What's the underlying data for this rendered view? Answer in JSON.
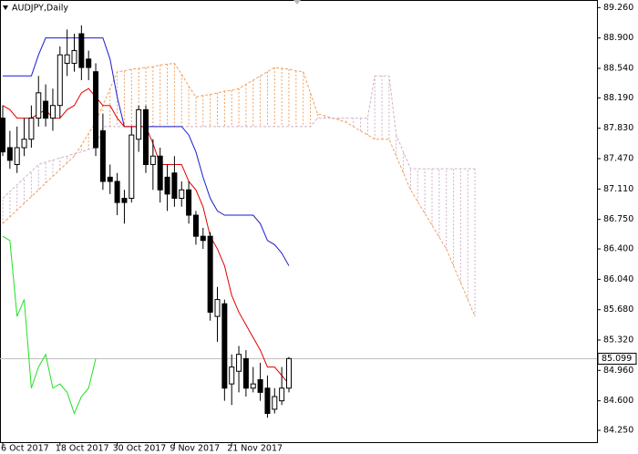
{
  "chart_data": {
    "type": "candlestick",
    "title": "AUDJPY,Daily",
    "categories": [
      "6 Oct 2017",
      null,
      null,
      null,
      null,
      null,
      null,
      null,
      "18 Oct 2017",
      null,
      null,
      null,
      null,
      null,
      null,
      null,
      "30 Oct 2017",
      null,
      null,
      null,
      null,
      null,
      null,
      null,
      "9 Nov 2017",
      null,
      null,
      null,
      null,
      null,
      null,
      null,
      "21 Nov 2017",
      null,
      null,
      null,
      null,
      null,
      null,
      null,
      null,
      null,
      null,
      null,
      null,
      null,
      null,
      null,
      null,
      null,
      null,
      null,
      null,
      null,
      null,
      null,
      null,
      null,
      null,
      null,
      null,
      null,
      null,
      null,
      null,
      null,
      null
    ],
    "open": [
      87.95,
      87.6,
      87.4,
      87.6,
      87.7,
      87.95,
      88.15,
      87.95,
      88.1,
      88.6,
      88.6,
      88.95,
      88.65,
      88.5,
      87.8,
      87.25,
      87.2,
      87.0,
      87.0,
      87.7,
      88.05,
      87.4,
      87.5,
      87.25,
      87.3,
      87.0,
      87.1,
      86.8,
      86.55,
      86.55,
      85.6,
      85.75,
      84.8,
      84.95,
      85.1,
      84.75,
      84.85,
      84.75,
      84.5,
      84.6,
      84.75,
      null,
      null,
      null,
      null,
      null,
      null,
      null,
      null,
      null,
      null,
      null,
      null,
      null,
      null,
      null,
      null,
      null,
      null,
      null,
      null,
      null,
      null,
      null,
      null,
      null,
      null
    ],
    "high": [
      88.1,
      87.8,
      87.85,
      87.95,
      88.1,
      88.45,
      88.35,
      88.3,
      88.8,
      89.0,
      88.95,
      89.05,
      88.75,
      88.6,
      88.0,
      87.4,
      87.3,
      87.1,
      87.85,
      88.1,
      88.1,
      87.7,
      87.6,
      87.4,
      87.5,
      87.2,
      87.2,
      86.85,
      86.65,
      86.6,
      85.95,
      85.8,
      85.15,
      85.25,
      85.2,
      85.0,
      85.05,
      84.9,
      84.75,
      85.0,
      85.12,
      null,
      null,
      null,
      null,
      null,
      null,
      null,
      null,
      null,
      null,
      null,
      null,
      null,
      null,
      null,
      null,
      null,
      null,
      null,
      null,
      null,
      null,
      null,
      null,
      null,
      null
    ],
    "low": [
      87.5,
      87.35,
      87.3,
      87.5,
      87.6,
      87.85,
      87.85,
      87.8,
      87.95,
      88.45,
      88.5,
      88.4,
      88.4,
      87.5,
      87.1,
      87.05,
      86.8,
      86.7,
      86.95,
      87.55,
      87.3,
      87.1,
      86.95,
      86.85,
      86.9,
      86.9,
      86.7,
      86.45,
      86.4,
      85.55,
      85.3,
      84.6,
      84.55,
      84.7,
      84.65,
      84.7,
      84.6,
      84.4,
      84.45,
      84.55,
      84.7,
      null,
      null,
      null,
      null,
      null,
      null,
      null,
      null,
      null,
      null,
      null,
      null,
      null,
      null,
      null,
      null,
      null,
      null,
      null,
      null,
      null,
      null,
      null,
      null,
      null,
      null
    ],
    "close": [
      87.55,
      87.45,
      87.6,
      87.7,
      87.95,
      88.25,
      87.95,
      88.1,
      88.7,
      88.7,
      88.75,
      88.55,
      88.55,
      87.6,
      87.2,
      87.2,
      86.95,
      86.95,
      87.75,
      88.05,
      87.4,
      87.5,
      87.1,
      87.05,
      87.0,
      87.1,
      86.8,
      86.55,
      86.5,
      85.65,
      85.8,
      84.75,
      85.0,
      85.15,
      84.75,
      84.8,
      84.7,
      84.45,
      84.65,
      84.75,
      85.1,
      null,
      null,
      null,
      null,
      null,
      null,
      null,
      null,
      null,
      null,
      null,
      null,
      null,
      null,
      null,
      null,
      null,
      null,
      null,
      null,
      null,
      null,
      null,
      null,
      null,
      null
    ],
    "tenkan": [
      88.1,
      88.05,
      87.95,
      87.95,
      87.95,
      88.0,
      88.05,
      87.95,
      87.95,
      88.05,
      88.1,
      88.25,
      88.3,
      88.2,
      88.1,
      88.1,
      87.95,
      87.85,
      87.85,
      87.85,
      87.85,
      87.65,
      87.4,
      87.4,
      87.4,
      87.4,
      87.2,
      87.1,
      86.9,
      86.55,
      86.4,
      86.2,
      85.85,
      85.65,
      85.5,
      85.35,
      85.2,
      85.0,
      85.0,
      84.9,
      84.8,
      null,
      null,
      null,
      null,
      null,
      null,
      null,
      null,
      null,
      null,
      null,
      null,
      null,
      null,
      null,
      null,
      null,
      null,
      null,
      null,
      null,
      null,
      null,
      null,
      null,
      null
    ],
    "kijun": [
      88.45,
      88.45,
      88.45,
      88.45,
      88.45,
      88.7,
      88.9,
      88.9,
      88.9,
      88.9,
      88.9,
      88.9,
      88.9,
      88.9,
      88.9,
      88.65,
      88.2,
      87.85,
      87.85,
      87.85,
      87.85,
      87.85,
      87.85,
      87.85,
      87.85,
      87.85,
      87.75,
      87.55,
      87.25,
      87.0,
      86.85,
      86.8,
      86.8,
      86.8,
      86.8,
      86.8,
      86.7,
      86.5,
      86.45,
      86.35,
      86.2,
      null,
      null,
      null,
      null,
      null,
      null,
      null,
      null,
      null,
      null,
      null,
      null,
      null,
      null,
      null,
      null,
      null,
      null,
      null,
      null,
      null,
      null,
      null,
      null,
      null,
      null
    ],
    "chikou": [
      86.55,
      86.5,
      85.6,
      85.8,
      84.75,
      85.0,
      85.15,
      84.75,
      84.8,
      84.7,
      84.45,
      84.65,
      84.75,
      85.1,
      null,
      null,
      null,
      null,
      null,
      null,
      null,
      null,
      null,
      null,
      null,
      null,
      null,
      null,
      null,
      null,
      null,
      null,
      null,
      null,
      null,
      null,
      null,
      null,
      null,
      null,
      null,
      null,
      null,
      null,
      null,
      null,
      null,
      null,
      null,
      null,
      null,
      null,
      null,
      null,
      null,
      null,
      null,
      null,
      null,
      null,
      null,
      null,
      null,
      null,
      null,
      null,
      null
    ],
    "span_a": [
      86.7,
      86.78,
      86.86,
      86.94,
      87.02,
      87.1,
      87.18,
      87.26,
      87.34,
      87.42,
      87.5,
      87.63,
      87.77,
      87.9,
      88.1,
      88.3,
      88.5,
      88.51,
      88.53,
      88.54,
      88.55,
      88.56,
      88.58,
      88.59,
      88.6,
      88.47,
      88.33,
      88.2,
      88.22,
      88.23,
      88.25,
      88.27,
      88.28,
      88.3,
      88.35,
      88.4,
      88.45,
      88.5,
      88.55,
      88.54,
      88.53,
      88.51,
      88.5,
      88.25,
      88.0,
      87.98,
      87.95,
      87.93,
      87.9,
      87.85,
      87.8,
      87.75,
      87.7,
      87.7,
      87.7,
      87.5,
      87.3,
      87.1,
      86.96,
      86.82,
      86.68,
      86.54,
      86.4,
      86.2,
      86.0,
      85.8,
      85.6
    ],
    "span_b": [
      87.0,
      87.08,
      87.16,
      87.24,
      87.32,
      87.4,
      87.43,
      87.45,
      87.48,
      87.5,
      87.53,
      87.55,
      87.58,
      87.6,
      87.85,
      87.85,
      87.85,
      87.85,
      87.85,
      87.85,
      87.85,
      87.85,
      87.85,
      87.85,
      87.85,
      87.85,
      87.85,
      87.85,
      87.85,
      87.85,
      87.85,
      87.85,
      87.85,
      87.85,
      87.85,
      87.85,
      87.85,
      87.85,
      87.85,
      87.85,
      87.85,
      87.85,
      87.85,
      87.85,
      87.95,
      87.95,
      87.95,
      87.95,
      87.95,
      87.95,
      87.95,
      87.95,
      88.45,
      88.45,
      88.45,
      87.75,
      87.55,
      87.35,
      87.35,
      87.35,
      87.35,
      87.35,
      87.35,
      87.35,
      87.35,
      87.35,
      87.35
    ],
    "colors": {
      "bull": "#ffffff",
      "bear": "#000000",
      "tenkan": "#e00000",
      "kijun": "#1a1ad0",
      "chikou": "#22e022",
      "span_a": "#f0a060",
      "span_b": "#d0b0c8"
    },
    "last_price": 85.099,
    "ylim": [
      84.11,
      89.35
    ],
    "yticks": [
      {
        "value": 89.26,
        "label": "89.260"
      },
      {
        "value": 88.9,
        "label": "88.900"
      },
      {
        "value": 88.54,
        "label": "88.540"
      },
      {
        "value": 88.19,
        "label": "88.190"
      },
      {
        "value": 87.83,
        "label": "87.830"
      },
      {
        "value": 87.47,
        "label": "87.470"
      },
      {
        "value": 87.11,
        "label": "87.110"
      },
      {
        "value": 86.75,
        "label": "86.750"
      },
      {
        "value": 86.4,
        "label": "86.400"
      },
      {
        "value": 86.04,
        "label": "86.040"
      },
      {
        "value": 85.68,
        "label": "85.680"
      },
      {
        "value": 85.32,
        "label": "85.320"
      },
      {
        "value": 84.96,
        "label": "84.960"
      },
      {
        "value": 84.6,
        "label": "84.600"
      },
      {
        "value": 84.25,
        "label": "84.250"
      }
    ],
    "grid": false
  }
}
